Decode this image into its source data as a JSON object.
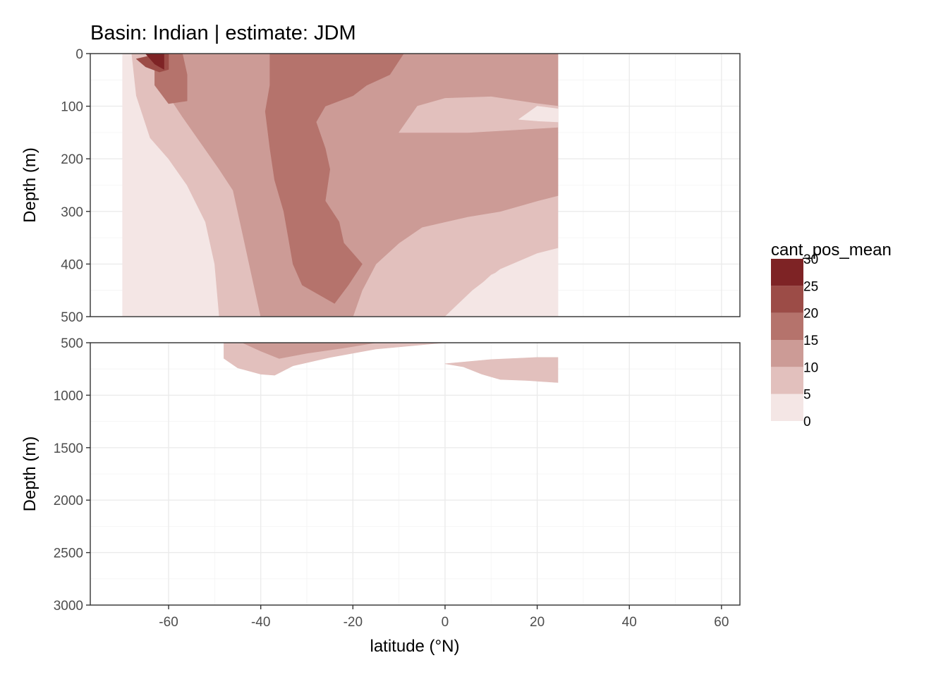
{
  "chart_data": {
    "type": "heatmap",
    "subtype": "filled-contour depth section (two vertically stacked panels)",
    "title": "Basin: Indian | estimate: JDM",
    "xlabel": "latitude (°N)",
    "ylabel": "Depth (m)",
    "x_ticks": [
      -60,
      -40,
      -20,
      0,
      20,
      40,
      60
    ],
    "xlim": [
      -77,
      64
    ],
    "data_x_range": [
      -70,
      24.5
    ],
    "panels": [
      {
        "name": "upper",
        "ylim": [
          0,
          500
        ],
        "y_reversed": true,
        "y_ticks": [
          0,
          100,
          200,
          300,
          400,
          500
        ]
      },
      {
        "name": "lower",
        "ylim": [
          500,
          3000
        ],
        "y_reversed": true,
        "y_ticks": [
          500,
          1000,
          1500,
          2000,
          2500,
          3000
        ]
      }
    ],
    "legend": {
      "title": "cant_pos_mean",
      "position": "right",
      "breaks": [
        0,
        5,
        10,
        15,
        20,
        25,
        30
      ],
      "bins": [
        {
          "range": [
            0,
            5
          ],
          "color": "#f4e6e5"
        },
        {
          "range": [
            5,
            10
          ],
          "color": "#e2c0bd"
        },
        {
          "range": [
            10,
            15
          ],
          "color": "#cc9b96"
        },
        {
          "range": [
            15,
            20
          ],
          "color": "#b5736c"
        },
        {
          "range": [
            20,
            25
          ],
          "color": "#9c4c47"
        },
        {
          "range": [
            25,
            30
          ],
          "color": "#7e2325"
        }
      ]
    },
    "contour_regions": [
      {
        "panel": "upper",
        "level": "0-5",
        "points": [
          [
            -70,
            0
          ],
          [
            24.5,
            0
          ],
          [
            24.5,
            500
          ],
          [
            -70,
            500
          ]
        ]
      },
      {
        "panel": "upper",
        "level": "5-10",
        "points": [
          [
            -68,
            0
          ],
          [
            24.5,
            0
          ],
          [
            24.5,
            370
          ],
          [
            20,
            380
          ],
          [
            10,
            420
          ],
          [
            0,
            500
          ],
          [
            -49,
            500
          ],
          [
            -50,
            400
          ],
          [
            -52,
            320
          ],
          [
            -56,
            250
          ],
          [
            -60,
            200
          ],
          [
            -64,
            160
          ],
          [
            -67,
            80
          ]
        ]
      },
      {
        "panel": "upper",
        "level": "10-15",
        "points": [
          [
            -65,
            0
          ],
          [
            24.5,
            0
          ],
          [
            24.5,
            270
          ],
          [
            20,
            280
          ],
          [
            12,
            300
          ],
          [
            5,
            310
          ],
          [
            -5,
            330
          ],
          [
            -10,
            360
          ],
          [
            -15,
            400
          ],
          [
            -18,
            450
          ],
          [
            -20,
            500
          ],
          [
            -40,
            500
          ],
          [
            -42,
            420
          ],
          [
            -44,
            340
          ],
          [
            -46,
            260
          ],
          [
            -49,
            220
          ],
          [
            -53,
            170
          ],
          [
            -57,
            120
          ],
          [
            -60,
            80
          ],
          [
            -62,
            30
          ]
        ]
      },
      {
        "panel": "upper",
        "level": "15-20",
        "points": [
          [
            -38,
            0
          ],
          [
            -9,
            0
          ],
          [
            -12,
            40
          ],
          [
            -17,
            60
          ],
          [
            -20,
            80
          ],
          [
            -26,
            100
          ],
          [
            -28,
            130
          ],
          [
            -26,
            180
          ],
          [
            -25,
            220
          ],
          [
            -26,
            280
          ],
          [
            -23,
            320
          ],
          [
            -22,
            360
          ],
          [
            -18,
            400
          ],
          [
            -21,
            440
          ],
          [
            -24,
            475
          ],
          [
            -31,
            440
          ],
          [
            -33,
            400
          ],
          [
            -34,
            350
          ],
          [
            -35,
            300
          ],
          [
            -37,
            240
          ],
          [
            -38,
            180
          ],
          [
            -39,
            110
          ],
          [
            -38,
            60
          ]
        ]
      },
      {
        "panel": "upper",
        "level": "15-20",
        "points": [
          [
            -63,
            0
          ],
          [
            -57,
            0
          ],
          [
            -56,
            40
          ],
          [
            -56,
            90
          ],
          [
            -60,
            95
          ],
          [
            -63,
            60
          ]
        ]
      },
      {
        "panel": "upper",
        "level": "20-25",
        "points": [
          [
            -67,
            10
          ],
          [
            -62,
            0
          ],
          [
            -60,
            0
          ],
          [
            -60,
            30
          ],
          [
            -62,
            35
          ],
          [
            -65,
            25
          ]
        ]
      },
      {
        "panel": "upper",
        "level": "25-30",
        "points": [
          [
            -65,
            0
          ],
          [
            -61,
            0
          ],
          [
            -61,
            30
          ],
          [
            -63,
            20
          ]
        ]
      },
      {
        "panel": "upper",
        "level": "5-10",
        "points": [
          [
            -10,
            150
          ],
          [
            -6,
            100
          ],
          [
            0,
            85
          ],
          [
            10,
            82
          ],
          [
            20,
            95
          ],
          [
            24.5,
            100
          ],
          [
            24.5,
            140
          ],
          [
            15,
            145
          ],
          [
            5,
            150
          ]
        ]
      },
      {
        "panel": "upper",
        "level": "0-5",
        "points": [
          [
            16,
            125
          ],
          [
            20,
            100
          ],
          [
            24.5,
            105
          ],
          [
            24.5,
            130
          ],
          [
            20,
            128
          ]
        ]
      },
      {
        "panel": "upper",
        "level": "0-5",
        "points": [
          [
            0,
            500
          ],
          [
            6,
            450
          ],
          [
            12,
            410
          ],
          [
            20,
            380
          ],
          [
            24.5,
            370
          ],
          [
            24.5,
            500
          ]
        ]
      },
      {
        "panel": "lower",
        "level": "5-10",
        "points": [
          [
            -48,
            500
          ],
          [
            0,
            500
          ],
          [
            -15,
            560
          ],
          [
            -25,
            640
          ],
          [
            -33,
            720
          ],
          [
            -37,
            810
          ],
          [
            -40,
            800
          ],
          [
            -45,
            740
          ],
          [
            -48,
            650
          ]
        ]
      },
      {
        "panel": "lower",
        "level": "5-10",
        "points": [
          [
            -42,
            500
          ],
          [
            -15,
            500
          ],
          [
            -25,
            560
          ],
          [
            -33,
            620
          ],
          [
            -38,
            680
          ],
          [
            -42,
            600
          ]
        ]
      },
      {
        "panel": "lower",
        "level": "5-10",
        "points": [
          [
            0,
            700
          ],
          [
            10,
            660
          ],
          [
            20,
            640
          ],
          [
            24.5,
            640
          ],
          [
            24.5,
            880
          ],
          [
            18,
            860
          ],
          [
            12,
            850
          ],
          [
            8,
            800
          ],
          [
            4,
            730
          ]
        ]
      },
      {
        "panel": "lower",
        "level": "10-15",
        "points": [
          [
            -44,
            500
          ],
          [
            -15,
            500
          ],
          [
            -22,
            550
          ],
          [
            -30,
            600
          ],
          [
            -36,
            650
          ],
          [
            -40,
            580
          ]
        ]
      }
    ]
  }
}
